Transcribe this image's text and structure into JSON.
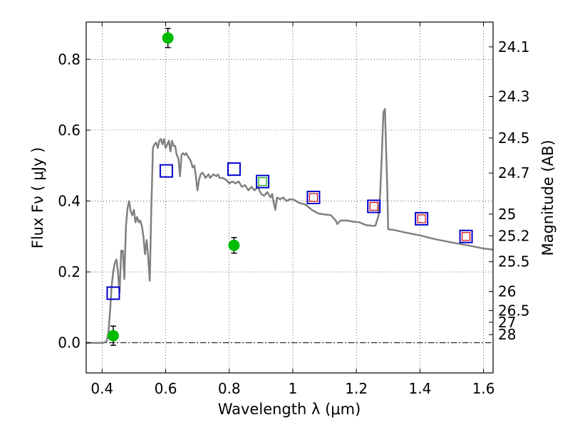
{
  "chart_data": {
    "type": "scatter",
    "xlabel": "Wavelength  λ (μm)",
    "ylabel": "Flux  Fν  ( μJy )",
    "y2label": "Magnitude (AB)",
    "xlim": [
      0.35,
      1.63
    ],
    "ylim": [
      -0.085,
      0.905
    ],
    "grid": true,
    "x_ticks": [
      {
        "value": 0.4,
        "label": "0.4"
      },
      {
        "value": 0.6,
        "label": "0.6"
      },
      {
        "value": 0.8,
        "label": "0.8"
      },
      {
        "value": 1.0,
        "label": "1"
      },
      {
        "value": 1.2,
        "label": "1.2"
      },
      {
        "value": 1.4,
        "label": "1.4"
      },
      {
        "value": 1.6,
        "label": "1.6"
      }
    ],
    "y_ticks": [
      {
        "value": 0.0,
        "label": "0.0"
      },
      {
        "value": 0.2,
        "label": "0.2"
      },
      {
        "value": 0.4,
        "label": "0.4"
      },
      {
        "value": 0.6,
        "label": "0.6"
      },
      {
        "value": 0.8,
        "label": "0.8"
      }
    ],
    "magnitude_ticks": [
      {
        "flux": 0.835,
        "label": "24.1"
      },
      {
        "flux": 0.695,
        "label": "24.3"
      },
      {
        "flux": 0.578,
        "label": "24.5"
      },
      {
        "flux": 0.479,
        "label": "24.7"
      },
      {
        "flux": 0.363,
        "label": "25"
      },
      {
        "flux": 0.302,
        "label": "25.2"
      },
      {
        "flux": 0.229,
        "label": "25.5"
      },
      {
        "flux": 0.145,
        "label": "26"
      },
      {
        "flux": 0.091,
        "label": "26.5"
      },
      {
        "flux": 0.058,
        "label": "27"
      },
      {
        "flux": 0.023,
        "label": "28"
      }
    ],
    "series": [
      {
        "name": "Model SED",
        "kind": "line",
        "color": "#808080",
        "points": [
          [
            0.35,
            0.0
          ],
          [
            0.405,
            0.0
          ],
          [
            0.415,
            0.005
          ],
          [
            0.42,
            0.03
          ],
          [
            0.425,
            0.09
          ],
          [
            0.43,
            0.16
          ],
          [
            0.435,
            0.2
          ],
          [
            0.44,
            0.225
          ],
          [
            0.445,
            0.235
          ],
          [
            0.45,
            0.2
          ],
          [
            0.455,
            0.14
          ],
          [
            0.46,
            0.26
          ],
          [
            0.465,
            0.26
          ],
          [
            0.47,
            0.18
          ],
          [
            0.475,
            0.33
          ],
          [
            0.48,
            0.38
          ],
          [
            0.485,
            0.4
          ],
          [
            0.49,
            0.37
          ],
          [
            0.495,
            0.36
          ],
          [
            0.5,
            0.375
          ],
          [
            0.505,
            0.34
          ],
          [
            0.51,
            0.355
          ],
          [
            0.515,
            0.34
          ],
          [
            0.52,
            0.345
          ],
          [
            0.525,
            0.33
          ],
          [
            0.53,
            0.3
          ],
          [
            0.535,
            0.25
          ],
          [
            0.54,
            0.29
          ],
          [
            0.545,
            0.24
          ],
          [
            0.55,
            0.175
          ],
          [
            0.555,
            0.38
          ],
          [
            0.56,
            0.55
          ],
          [
            0.565,
            0.56
          ],
          [
            0.57,
            0.565
          ],
          [
            0.575,
            0.55
          ],
          [
            0.58,
            0.57
          ],
          [
            0.585,
            0.575
          ],
          [
            0.59,
            0.56
          ],
          [
            0.595,
            0.575
          ],
          [
            0.6,
            0.55
          ],
          [
            0.605,
            0.56
          ],
          [
            0.61,
            0.57
          ],
          [
            0.615,
            0.54
          ],
          [
            0.62,
            0.57
          ],
          [
            0.625,
            0.555
          ],
          [
            0.63,
            0.555
          ],
          [
            0.635,
            0.53
          ],
          [
            0.64,
            0.52
          ],
          [
            0.645,
            0.47
          ],
          [
            0.65,
            0.53
          ],
          [
            0.655,
            0.535
          ],
          [
            0.66,
            0.53
          ],
          [
            0.665,
            0.535
          ],
          [
            0.67,
            0.525
          ],
          [
            0.675,
            0.52
          ],
          [
            0.68,
            0.51
          ],
          [
            0.685,
            0.495
          ],
          [
            0.69,
            0.5
          ],
          [
            0.695,
            0.47
          ],
          [
            0.7,
            0.43
          ],
          [
            0.705,
            0.46
          ],
          [
            0.71,
            0.475
          ],
          [
            0.715,
            0.48
          ],
          [
            0.72,
            0.475
          ],
          [
            0.725,
            0.465
          ],
          [
            0.73,
            0.47
          ],
          [
            0.735,
            0.475
          ],
          [
            0.74,
            0.465
          ],
          [
            0.75,
            0.475
          ],
          [
            0.76,
            0.47
          ],
          [
            0.765,
            0.475
          ],
          [
            0.77,
            0.465
          ],
          [
            0.78,
            0.465
          ],
          [
            0.79,
            0.46
          ],
          [
            0.8,
            0.45
          ],
          [
            0.81,
            0.455
          ],
          [
            0.82,
            0.45
          ],
          [
            0.83,
            0.455
          ],
          [
            0.84,
            0.44
          ],
          [
            0.85,
            0.445
          ],
          [
            0.86,
            0.43
          ],
          [
            0.87,
            0.44
          ],
          [
            0.88,
            0.43
          ],
          [
            0.89,
            0.44
          ],
          [
            0.9,
            0.42
          ],
          [
            0.91,
            0.415
          ],
          [
            0.92,
            0.425
          ],
          [
            0.93,
            0.41
          ],
          [
            0.935,
            0.42
          ],
          [
            0.94,
            0.395
          ],
          [
            0.945,
            0.375
          ],
          [
            0.95,
            0.41
          ],
          [
            0.96,
            0.405
          ],
          [
            0.97,
            0.41
          ],
          [
            0.98,
            0.4
          ],
          [
            0.99,
            0.405
          ],
          [
            1.0,
            0.405
          ],
          [
            1.02,
            0.395
          ],
          [
            1.04,
            0.39
          ],
          [
            1.06,
            0.375
          ],
          [
            1.08,
            0.365
          ],
          [
            1.1,
            0.362
          ],
          [
            1.12,
            0.36
          ],
          [
            1.135,
            0.345
          ],
          [
            1.14,
            0.335
          ],
          [
            1.15,
            0.345
          ],
          [
            1.17,
            0.345
          ],
          [
            1.19,
            0.342
          ],
          [
            1.21,
            0.34
          ],
          [
            1.23,
            0.332
          ],
          [
            1.25,
            0.33
          ],
          [
            1.26,
            0.33
          ],
          [
            1.27,
            0.36
          ],
          [
            1.275,
            0.42
          ],
          [
            1.28,
            0.53
          ],
          [
            1.285,
            0.65
          ],
          [
            1.29,
            0.66
          ],
          [
            1.293,
            0.56
          ],
          [
            1.297,
            0.44
          ],
          [
            1.3,
            0.32
          ],
          [
            1.32,
            0.318
          ],
          [
            1.35,
            0.312
          ],
          [
            1.4,
            0.303
          ],
          [
            1.45,
            0.292
          ],
          [
            1.5,
            0.283
          ],
          [
            1.55,
            0.275
          ],
          [
            1.6,
            0.266
          ],
          [
            1.63,
            0.263
          ]
        ]
      },
      {
        "name": "Green circles with error bars",
        "kind": "circle",
        "color": "#00bb00",
        "points": [
          {
            "x": 0.435,
            "y": 0.02,
            "err": 0.027
          },
          {
            "x": 0.607,
            "y": 0.86,
            "err": 0.027
          },
          {
            "x": 0.815,
            "y": 0.275,
            "err": 0.022
          }
        ]
      },
      {
        "name": "Blue squares",
        "kind": "square",
        "color": "#0000cc",
        "points": [
          {
            "x": 0.435,
            "y": 0.14
          },
          {
            "x": 0.602,
            "y": 0.485
          },
          {
            "x": 0.815,
            "y": 0.49
          },
          {
            "x": 0.905,
            "y": 0.455
          },
          {
            "x": 1.065,
            "y": 0.41
          },
          {
            "x": 1.255,
            "y": 0.385
          },
          {
            "x": 1.405,
            "y": 0.35
          },
          {
            "x": 1.545,
            "y": 0.3
          }
        ]
      },
      {
        "name": "Green inner squares",
        "kind": "inner-square",
        "color": "#00aa00",
        "points": [
          {
            "x": 0.905,
            "y": 0.455
          }
        ]
      },
      {
        "name": "Red inner squares",
        "kind": "inner-square",
        "color": "#cc0000",
        "points": [
          {
            "x": 1.065,
            "y": 0.41
          },
          {
            "x": 1.255,
            "y": 0.385
          },
          {
            "x": 1.405,
            "y": 0.35
          },
          {
            "x": 1.545,
            "y": 0.3
          }
        ]
      }
    ]
  }
}
